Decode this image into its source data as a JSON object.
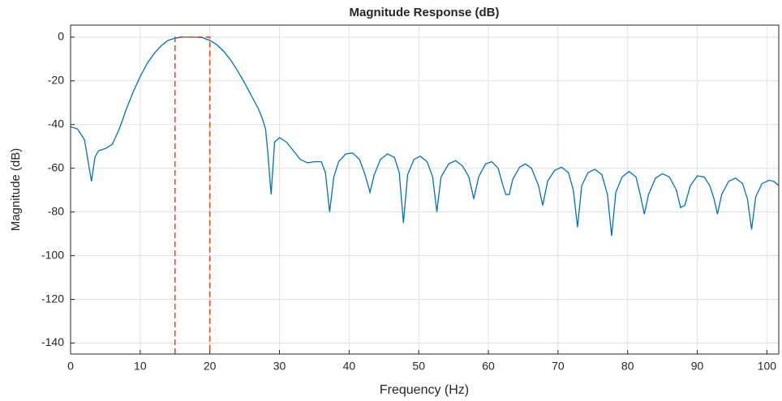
{
  "chart_data": {
    "type": "line",
    "title": "Magnitude Response (dB)",
    "xlabel": "Frequency (Hz)",
    "ylabel": "Magnitude (dB)",
    "color": "#0072bd",
    "x": [
      0,
      1,
      2,
      3,
      3.5,
      4,
      5,
      6,
      7,
      8,
      9,
      10,
      11,
      12,
      13,
      14,
      15,
      16,
      17,
      18,
      19,
      20,
      21,
      22,
      23,
      24,
      25,
      26,
      27,
      27.5,
      28,
      28.3,
      28.8,
      29.3,
      30,
      31,
      32,
      33,
      34,
      35,
      36,
      36.6,
      37.2,
      37.8,
      38.5,
      39.5,
      40.5,
      41.5,
      42.3,
      43,
      43.6,
      44.5,
      45.5,
      46.5,
      47.2,
      47.8,
      48.4,
      49.3,
      50.2,
      51.2,
      52,
      52.6,
      53.2,
      54.3,
      55.3,
      56.3,
      57.2,
      57.9,
      58.6,
      59.6,
      60.5,
      61.4,
      62.1,
      62.5,
      63,
      63.5,
      64.5,
      65.3,
      66.2,
      67.2,
      67.8,
      68.5,
      69.5,
      70.5,
      71.5,
      72.2,
      72.8,
      73.4,
      74.3,
      75.3,
      76.3,
      77.1,
      77.7,
      78.3,
      79.2,
      80.2,
      81.2,
      81.8,
      82.4,
      83,
      84,
      85,
      86,
      87,
      87.6,
      88.2,
      89,
      90,
      91,
      91.8,
      92.4,
      92.9,
      93.5,
      94.5,
      95.5,
      96.5,
      97.2,
      97.8,
      98.4,
      99.3,
      100.3,
      101,
      101.7
    ],
    "y": [
      -41,
      -42,
      -47,
      -66,
      -55,
      -52,
      -51,
      -49,
      -42,
      -33,
      -25,
      -18,
      -12,
      -7.5,
      -4,
      -1.5,
      -0.5,
      0,
      0,
      0,
      -0.3,
      -1.5,
      -3.5,
      -6.5,
      -10.5,
      -15.5,
      -21,
      -27,
      -33,
      -37,
      -42,
      -52,
      -72,
      -48,
      -46,
      -48,
      -52,
      -56,
      -57.5,
      -57,
      -57,
      -62,
      -80,
      -64,
      -57,
      -53.5,
      -53,
      -56,
      -63,
      -71,
      -63,
      -56,
      -53.5,
      -55,
      -62,
      -85,
      -63,
      -56,
      -54.5,
      -57,
      -64,
      -80,
      -64,
      -58,
      -56.5,
      -59,
      -64,
      -74,
      -64,
      -58,
      -57,
      -60,
      -68,
      -72,
      -72,
      -65,
      -59.5,
      -58,
      -60,
      -68,
      -77,
      -66,
      -61,
      -59.5,
      -62,
      -70,
      -87,
      -68,
      -62,
      -60.5,
      -63,
      -72,
      -91,
      -71,
      -64,
      -61.5,
      -64,
      -72,
      -81,
      -72,
      -64.5,
      -62.5,
      -64,
      -70,
      -78,
      -77,
      -68,
      -63.5,
      -64,
      -68,
      -74,
      -81,
      -72,
      -66,
      -64.5,
      -67,
      -74,
      -88,
      -73,
      -67,
      -65.5,
      -66,
      -68
    ],
    "marker": {
      "x": [
        15,
        15,
        20,
        20
      ],
      "y": [
        -145,
        0,
        0,
        -145
      ],
      "color": "#d95319",
      "dashed": true
    },
    "xlim": [
      0,
      101.7
    ],
    "ylim": [
      -145,
      5.5
    ],
    "xticks": [
      0,
      10,
      20,
      30,
      40,
      50,
      60,
      70,
      80,
      90,
      100
    ],
    "yticks": [
      -140,
      -120,
      -100,
      -80,
      -60,
      -40,
      -20,
      0
    ],
    "grid": true
  }
}
